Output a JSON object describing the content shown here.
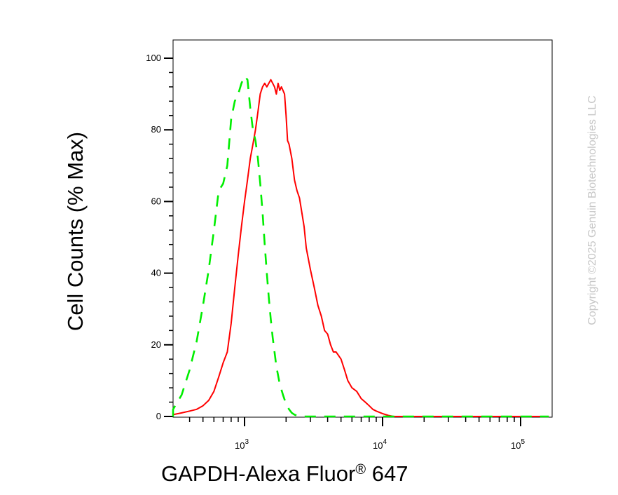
{
  "chart_data": {
    "type": "line",
    "title": "",
    "xlabel": "GAPDH-Alexa Fluor",
    "xlabel_sup": "®",
    "xlabel_suffix": " 647",
    "ylabel": "Cell Counts (% Max)",
    "xscale": "log",
    "xlim": [
      260,
      160000
    ],
    "ylim": [
      0,
      100
    ],
    "yticks": [
      0,
      20,
      40,
      60,
      80,
      100
    ],
    "xticks": [
      {
        "value": 1000,
        "base": "10",
        "exp": "3"
      },
      {
        "value": 10000,
        "base": "10",
        "exp": "4"
      },
      {
        "value": 100000,
        "base": "10",
        "exp": "5"
      }
    ],
    "grid": false,
    "series": [
      {
        "color": "#ff0000",
        "style": "solid",
        "x": [
          260,
          300,
          350,
          400,
          450,
          500,
          550,
          600,
          650,
          700,
          750,
          800,
          850,
          900,
          950,
          1000,
          1050,
          1100,
          1150,
          1200,
          1250,
          1300,
          1350,
          1400,
          1450,
          1500,
          1550,
          1600,
          1650,
          1700,
          1750,
          1800,
          1850,
          1900,
          1950,
          2000,
          2050,
          2100,
          2200,
          2300,
          2400,
          2500,
          2600,
          2700,
          2800,
          3000,
          3200,
          3400,
          3600,
          3800,
          4000,
          4200,
          4400,
          4600,
          4800,
          5000,
          5300,
          5600,
          6000,
          6500,
          7000,
          7500,
          8000,
          8500,
          9000,
          10000,
          11000,
          12000,
          13000,
          14000,
          15000,
          16000,
          20000,
          50000,
          100000,
          160000
        ],
        "y": [
          0,
          0.5,
          1,
          1.5,
          2,
          3,
          4.5,
          7,
          11,
          15,
          18,
          26,
          36,
          45,
          53,
          60,
          66,
          72,
          76,
          80,
          85,
          90,
          92,
          93,
          92,
          93,
          94,
          93,
          92,
          90,
          93,
          91,
          92,
          91,
          90,
          84,
          77,
          76,
          72,
          66,
          63,
          61,
          57,
          53,
          47,
          41,
          36,
          31,
          28,
          24,
          23,
          20,
          18,
          18,
          17,
          16,
          13,
          10,
          8,
          7,
          5,
          4,
          3,
          2,
          1.5,
          0.8,
          0.3,
          0,
          0,
          0,
          0,
          0,
          0,
          0,
          0,
          0
        ]
      },
      {
        "color": "#00ee00",
        "style": "dashed",
        "x": [
          260,
          300,
          350,
          400,
          450,
          500,
          550,
          600,
          650,
          700,
          750,
          800,
          850,
          900,
          950,
          1000,
          1050,
          1100,
          1150,
          1200,
          1250,
          1300,
          1350,
          1400,
          1450,
          1500,
          1550,
          1600,
          1700,
          1800,
          1900,
          2000,
          2100,
          2200,
          2300,
          2400,
          2500,
          2600,
          2800,
          3000,
          5000,
          10000,
          20000,
          50000,
          100000,
          160000
        ],
        "y": [
          0,
          2,
          6,
          13,
          21,
          31,
          41,
          52,
          63,
          65,
          70,
          83,
          88,
          90,
          93,
          95,
          94,
          86,
          80,
          77,
          72,
          65,
          57,
          48,
          40,
          33,
          27,
          22,
          14,
          9,
          6,
          3.5,
          2,
          1,
          0.5,
          0.2,
          0,
          0,
          0,
          0,
          0,
          0,
          0,
          0,
          0,
          0
        ]
      }
    ]
  },
  "copyright": "Copyright ©2025 Genuin Biotechnologies LLC"
}
